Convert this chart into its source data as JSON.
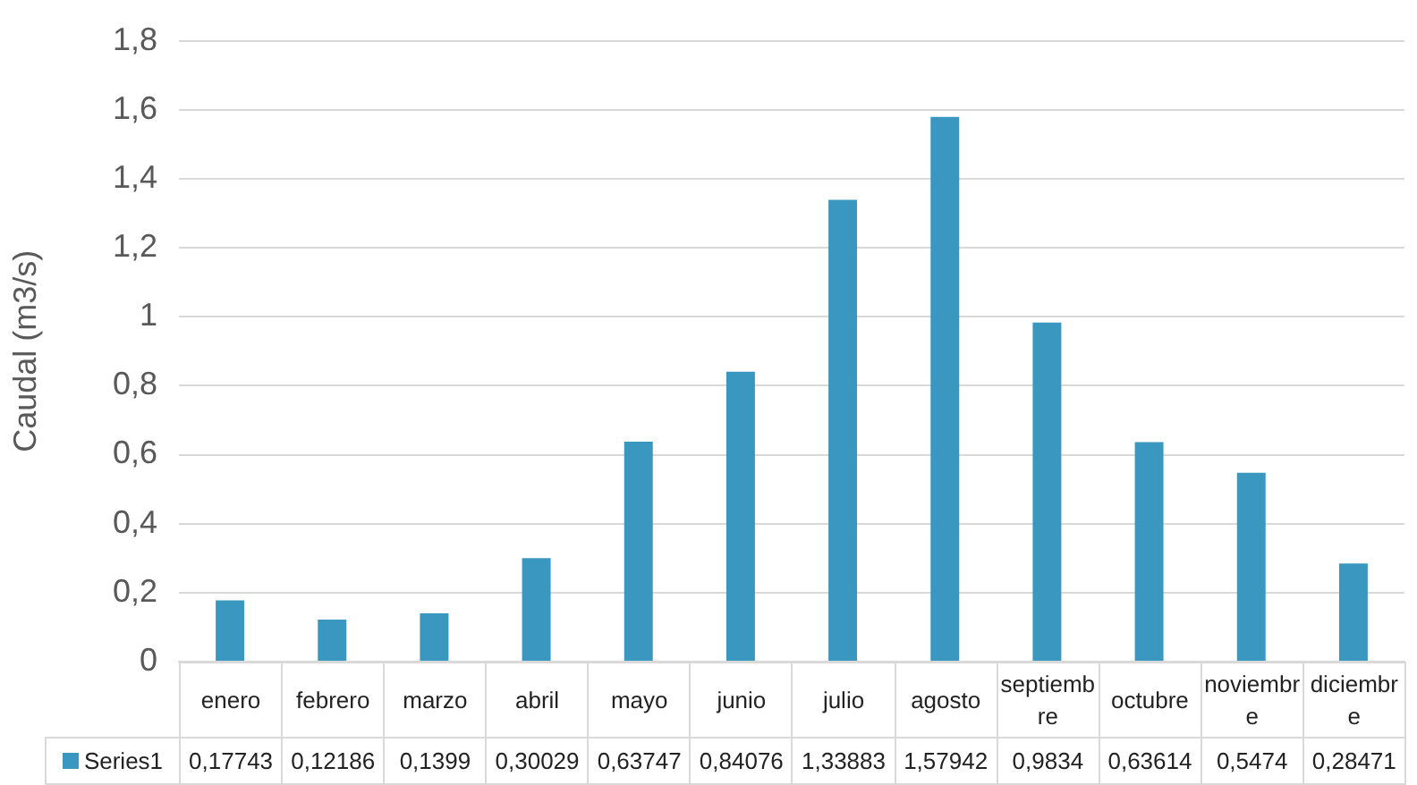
{
  "chart_data": {
    "type": "bar",
    "ylabel": "Caudal (m3/s)",
    "categories": [
      "enero",
      "febrero",
      "marzo",
      "abril",
      "mayo",
      "junio",
      "julio",
      "agosto",
      "septiembre",
      "octubre",
      "noviembre",
      "diciembre"
    ],
    "series": [
      {
        "name": "Series1",
        "color": "#3a97bf",
        "values": [
          0.17743,
          0.12186,
          0.1399,
          0.30029,
          0.63747,
          0.84076,
          1.33883,
          1.57942,
          0.9834,
          0.63614,
          0.5474,
          0.28471
        ],
        "value_labels": [
          "0,17743",
          "0,12186",
          "0,1399",
          "0,30029",
          "0,63747",
          "0,84076",
          "1,33883",
          "1,57942",
          "0,9834",
          "0,63614",
          "0,5474",
          "0,28471"
        ]
      }
    ],
    "ylim": [
      0,
      1.8
    ],
    "yticks": [
      0,
      {
        "value": 0.2,
        "label": "0,2"
      },
      {
        "value": 0.4,
        "label": "0,4"
      },
      {
        "value": 0.6,
        "label": "0,6"
      },
      {
        "value": 0.8,
        "label": "0,8"
      },
      1,
      {
        "value": 1.2,
        "label": "1,2"
      },
      {
        "value": 1.4,
        "label": "1,4"
      },
      {
        "value": 1.6,
        "label": "1,6"
      },
      {
        "value": 1.8,
        "label": "1,8"
      }
    ],
    "grid": "y",
    "legend": "bottom"
  }
}
